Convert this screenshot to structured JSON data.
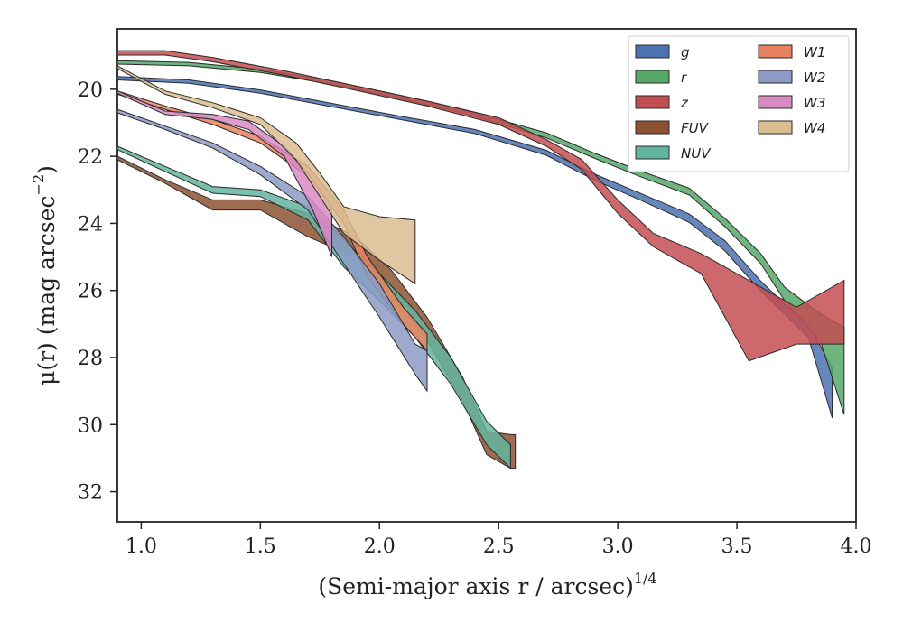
{
  "chart_data": {
    "type": "area",
    "xlabel": "(Semi-major axis r / arcsec)",
    "xlabel_sup": "1/4",
    "ylabel": "μ(r) (mag arcsec",
    "ylabel_sup": "−2",
    "ylabel_tail": ")",
    "xlim": [
      0.9,
      4.0
    ],
    "ylim": [
      32.9,
      18.2
    ],
    "y_inverted": true,
    "grid": false,
    "legend_placement": "top-right",
    "legend_columns": 2,
    "xticks": [
      1.0,
      1.5,
      2.0,
      2.5,
      3.0,
      3.5,
      4.0
    ],
    "xtick_labels": [
      "1.0",
      "1.5",
      "2.0",
      "2.5",
      "3.0",
      "3.5",
      "4.0"
    ],
    "yticks": [
      20,
      22,
      24,
      26,
      28,
      30,
      32
    ],
    "ytick_labels": [
      "20",
      "22",
      "24",
      "26",
      "28",
      "30",
      "32"
    ],
    "series": [
      {
        "name": "g",
        "color": "#4c72b0",
        "upper": [
          [
            0.9,
            19.62
          ],
          [
            1.2,
            19.72
          ],
          [
            1.5,
            20.02
          ],
          [
            1.8,
            20.42
          ],
          [
            2.1,
            20.82
          ],
          [
            2.4,
            21.2
          ],
          [
            2.7,
            21.82
          ],
          [
            2.9,
            22.52
          ],
          [
            3.1,
            23.12
          ],
          [
            3.3,
            23.72
          ],
          [
            3.45,
            24.52
          ],
          [
            3.6,
            25.72
          ],
          [
            3.7,
            26.4
          ],
          [
            3.8,
            27.0
          ],
          [
            3.9,
            28.3
          ]
        ],
        "lower": [
          [
            0.9,
            19.72
          ],
          [
            1.2,
            19.82
          ],
          [
            1.5,
            20.12
          ],
          [
            1.8,
            20.52
          ],
          [
            2.1,
            20.92
          ],
          [
            2.4,
            21.32
          ],
          [
            2.7,
            21.97
          ],
          [
            2.9,
            22.7
          ],
          [
            3.1,
            23.32
          ],
          [
            3.3,
            23.97
          ],
          [
            3.45,
            24.82
          ],
          [
            3.6,
            26.02
          ],
          [
            3.7,
            26.7
          ],
          [
            3.8,
            27.4
          ],
          [
            3.9,
            29.8
          ]
        ]
      },
      {
        "name": "r",
        "color": "#55a868",
        "upper": [
          [
            0.9,
            19.15
          ],
          [
            1.2,
            19.2
          ],
          [
            1.5,
            19.4
          ],
          [
            1.8,
            19.75
          ],
          [
            2.1,
            20.2
          ],
          [
            2.4,
            20.7
          ],
          [
            2.7,
            21.3
          ],
          [
            2.9,
            21.9
          ],
          [
            3.1,
            22.45
          ],
          [
            3.3,
            22.95
          ],
          [
            3.45,
            23.85
          ],
          [
            3.6,
            24.9
          ],
          [
            3.7,
            25.9
          ],
          [
            3.85,
            26.7
          ],
          [
            3.95,
            27.1
          ]
        ],
        "lower": [
          [
            0.9,
            19.25
          ],
          [
            1.2,
            19.3
          ],
          [
            1.5,
            19.5
          ],
          [
            1.8,
            19.85
          ],
          [
            2.1,
            20.3
          ],
          [
            2.4,
            20.8
          ],
          [
            2.7,
            21.45
          ],
          [
            2.9,
            22.05
          ],
          [
            3.1,
            22.62
          ],
          [
            3.3,
            23.15
          ],
          [
            3.45,
            24.1
          ],
          [
            3.6,
            25.2
          ],
          [
            3.7,
            26.3
          ],
          [
            3.85,
            27.5
          ],
          [
            3.95,
            29.7
          ]
        ]
      },
      {
        "name": "z",
        "color": "#c44e52",
        "upper": [
          [
            0.9,
            18.85
          ],
          [
            1.1,
            18.85
          ],
          [
            1.3,
            19.05
          ],
          [
            1.6,
            19.45
          ],
          [
            1.9,
            19.9
          ],
          [
            2.2,
            20.35
          ],
          [
            2.5,
            20.85
          ],
          [
            2.7,
            21.5
          ],
          [
            2.85,
            22.1
          ],
          [
            3.0,
            23.3
          ],
          [
            3.15,
            24.3
          ],
          [
            3.35,
            24.9
          ],
          [
            3.55,
            25.7
          ],
          [
            3.75,
            26.5
          ],
          [
            3.95,
            25.7
          ]
        ],
        "lower": [
          [
            0.9,
            18.98
          ],
          [
            1.1,
            18.98
          ],
          [
            1.3,
            19.18
          ],
          [
            1.6,
            19.58
          ],
          [
            1.9,
            20.03
          ],
          [
            2.2,
            20.5
          ],
          [
            2.5,
            21.05
          ],
          [
            2.7,
            21.7
          ],
          [
            2.85,
            22.4
          ],
          [
            3.0,
            23.7
          ],
          [
            3.15,
            24.7
          ],
          [
            3.35,
            25.5
          ],
          [
            3.55,
            28.1
          ],
          [
            3.75,
            27.6
          ],
          [
            3.95,
            27.6
          ]
        ]
      },
      {
        "name": "FUV",
        "color": "#8c5232",
        "upper": [
          [
            0.9,
            22.0
          ],
          [
            1.1,
            22.7
          ],
          [
            1.3,
            23.3
          ],
          [
            1.5,
            23.3
          ],
          [
            1.7,
            23.7
          ],
          [
            1.9,
            24.4
          ],
          [
            2.05,
            25.4
          ],
          [
            2.2,
            26.8
          ],
          [
            2.35,
            28.6
          ],
          [
            2.45,
            30.2
          ],
          [
            2.55,
            30.3
          ],
          [
            2.57,
            30.3
          ]
        ],
        "lower": [
          [
            0.9,
            22.1
          ],
          [
            1.1,
            22.8
          ],
          [
            1.3,
            23.6
          ],
          [
            1.5,
            23.6
          ],
          [
            1.7,
            24.4
          ],
          [
            1.9,
            25.0
          ],
          [
            2.05,
            26.1
          ],
          [
            2.2,
            27.5
          ],
          [
            2.35,
            29.3
          ],
          [
            2.45,
            30.9
          ],
          [
            2.55,
            31.3
          ],
          [
            2.57,
            31.3
          ]
        ]
      },
      {
        "name": "NUV",
        "color": "#64b5a0",
        "upper": [
          [
            0.9,
            21.7
          ],
          [
            1.1,
            22.3
          ],
          [
            1.3,
            22.9
          ],
          [
            1.5,
            23.0
          ],
          [
            1.7,
            23.5
          ],
          [
            1.85,
            24.5
          ],
          [
            2.0,
            25.5
          ],
          [
            2.15,
            26.6
          ],
          [
            2.3,
            28.0
          ],
          [
            2.45,
            29.9
          ],
          [
            2.55,
            30.6
          ]
        ],
        "lower": [
          [
            0.9,
            21.8
          ],
          [
            1.1,
            22.45
          ],
          [
            1.3,
            23.1
          ],
          [
            1.5,
            23.2
          ],
          [
            1.7,
            23.9
          ],
          [
            1.85,
            25.3
          ],
          [
            2.0,
            26.3
          ],
          [
            2.15,
            27.4
          ],
          [
            2.3,
            28.8
          ],
          [
            2.45,
            30.6
          ],
          [
            2.55,
            31.3
          ]
        ]
      },
      {
        "name": "W1",
        "color": "#e8825e",
        "upper": [
          [
            0.9,
            20.05
          ],
          [
            1.1,
            20.5
          ],
          [
            1.3,
            20.9
          ],
          [
            1.5,
            21.4
          ],
          [
            1.7,
            22.3
          ],
          [
            1.85,
            23.6
          ],
          [
            1.95,
            25.0
          ],
          [
            2.1,
            26.5
          ],
          [
            2.2,
            27.3
          ]
        ],
        "lower": [
          [
            0.9,
            20.15
          ],
          [
            1.1,
            20.6
          ],
          [
            1.3,
            21.05
          ],
          [
            1.5,
            21.6
          ],
          [
            1.7,
            22.6
          ],
          [
            1.85,
            24.0
          ],
          [
            1.95,
            25.6
          ],
          [
            2.1,
            27.0
          ],
          [
            2.2,
            27.8
          ]
        ]
      },
      {
        "name": "W2",
        "color": "#8c9bc6",
        "upper": [
          [
            0.9,
            20.6
          ],
          [
            1.1,
            21.1
          ],
          [
            1.3,
            21.6
          ],
          [
            1.5,
            22.3
          ],
          [
            1.7,
            23.2
          ],
          [
            1.85,
            24.4
          ],
          [
            2.0,
            25.8
          ],
          [
            2.15,
            27.6
          ],
          [
            2.2,
            27.8
          ]
        ],
        "lower": [
          [
            0.9,
            20.7
          ],
          [
            1.1,
            21.2
          ],
          [
            1.3,
            21.75
          ],
          [
            1.5,
            22.55
          ],
          [
            1.7,
            23.6
          ],
          [
            1.85,
            25.2
          ],
          [
            2.0,
            26.8
          ],
          [
            2.15,
            28.5
          ],
          [
            2.2,
            29.0
          ]
        ]
      },
      {
        "name": "W3",
        "color": "#d88ac2",
        "upper": [
          [
            0.9,
            20.05
          ],
          [
            1.1,
            20.65
          ],
          [
            1.3,
            20.75
          ],
          [
            1.45,
            20.95
          ],
          [
            1.6,
            21.7
          ],
          [
            1.72,
            22.7
          ],
          [
            1.8,
            23.5
          ]
        ],
        "lower": [
          [
            0.9,
            20.12
          ],
          [
            1.1,
            20.75
          ],
          [
            1.3,
            20.9
          ],
          [
            1.45,
            21.2
          ],
          [
            1.6,
            22.0
          ],
          [
            1.72,
            23.6
          ],
          [
            1.8,
            25.0
          ]
        ]
      },
      {
        "name": "W4",
        "color": "#dbbd92",
        "upper": [
          [
            0.9,
            19.3
          ],
          [
            1.1,
            20.05
          ],
          [
            1.3,
            20.4
          ],
          [
            1.5,
            20.85
          ],
          [
            1.65,
            21.6
          ],
          [
            1.75,
            22.5
          ],
          [
            1.85,
            23.5
          ],
          [
            2.0,
            23.8
          ],
          [
            2.15,
            23.9
          ]
        ],
        "lower": [
          [
            0.9,
            19.38
          ],
          [
            1.1,
            20.15
          ],
          [
            1.3,
            20.55
          ],
          [
            1.5,
            21.05
          ],
          [
            1.65,
            22.1
          ],
          [
            1.75,
            23.2
          ],
          [
            1.85,
            24.3
          ],
          [
            2.0,
            25.1
          ],
          [
            2.15,
            25.8
          ]
        ]
      }
    ]
  }
}
